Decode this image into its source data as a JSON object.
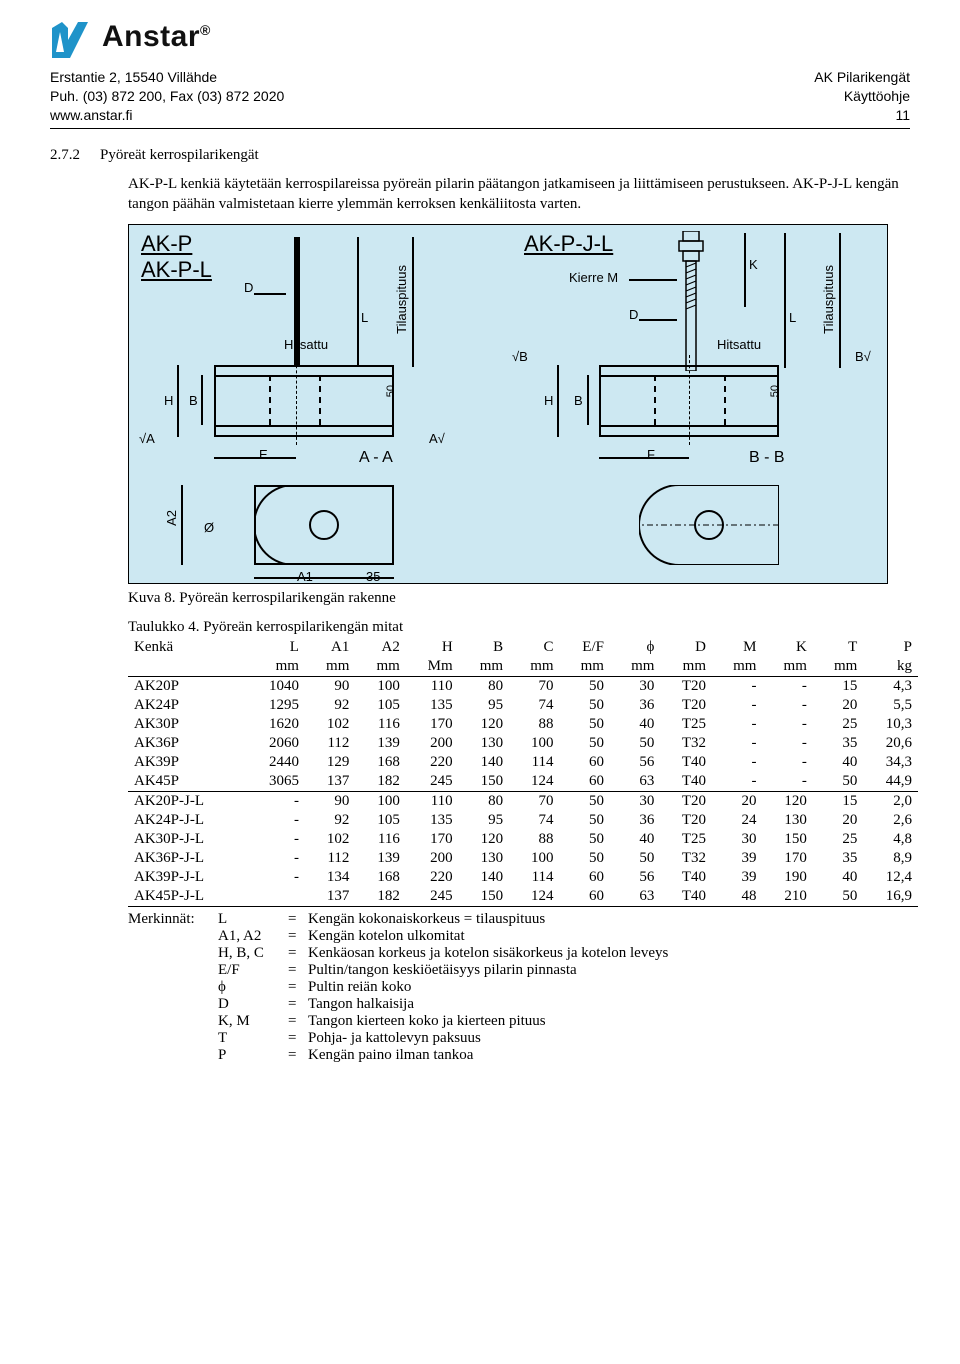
{
  "header": {
    "brand": "Anstar",
    "address_l1": "Erstantie 2, 15540 Villähde",
    "address_l2": "Puh. (03) 872 200, Fax (03) 872 2020",
    "address_l3": "www.anstar.fi",
    "right_l1": "AK Pilarikengät",
    "right_l2": "Käyttöohje",
    "right_l3": "11"
  },
  "section": {
    "num": "2.7.2",
    "title": "Pyöreät kerrospilarikengät",
    "para1": "AK-P-L kenkiä käytetään kerrospilareissa pyöreän pilarin päätangon jatkamiseen ja liittämiseen perustukseen. AK-P-J-L kengän tangon päähän valmistetaan kierre ylemmän kerroksen kenkäliitosta varten."
  },
  "diagram": {
    "left_title": "AK-P",
    "left_title2": "AK-P-L",
    "right_title": "AK-P-J-L",
    "lbl_D": "D",
    "lbl_L": "L",
    "lbl_K": "K",
    "lbl_H": "H",
    "lbl_B": "B",
    "lbl_E": "E",
    "lbl_F": "F",
    "lbl_A": "A",
    "lbl_A1": "A1",
    "lbl_A2": "A2",
    "lbl_35": "35",
    "lbl_50": "50",
    "lbl_phi": "Ø",
    "lbl_tilaus": "Tilauspituus",
    "lbl_hitsattu": "Hitsattu",
    "lbl_kierre": "Kierre M",
    "lbl_AA": "A - A",
    "lbl_BB": "B - B",
    "lbl_surfA": "A",
    "lbl_surfB": "B",
    "bg_color": "#cde8f2",
    "line_color": "#000000"
  },
  "caption": "Kuva 8. Pyöreän kerrospilarikengän rakenne",
  "table": {
    "title": "Taulukko 4. Pyöreän kerrospilarikengän mitat",
    "columns": [
      "Kenkä",
      "L",
      "A1",
      "A2",
      "H",
      "B",
      "C",
      "E/F",
      "ϕ",
      "D",
      "M",
      "K",
      "T",
      "P"
    ],
    "units": [
      "",
      "mm",
      "mm",
      "mm",
      "Mm",
      "mm",
      "mm",
      "mm",
      "mm",
      "mm",
      "mm",
      "mm",
      "mm",
      "kg"
    ],
    "rows": [
      [
        "AK20P",
        "1040",
        "90",
        "100",
        "110",
        "80",
        "70",
        "50",
        "30",
        "T20",
        "-",
        "-",
        "15",
        "4,3"
      ],
      [
        "AK24P",
        "1295",
        "92",
        "105",
        "135",
        "95",
        "74",
        "50",
        "36",
        "T20",
        "-",
        "-",
        "20",
        "5,5"
      ],
      [
        "AK30P",
        "1620",
        "102",
        "116",
        "170",
        "120",
        "88",
        "50",
        "40",
        "T25",
        "-",
        "-",
        "25",
        "10,3"
      ],
      [
        "AK36P",
        "2060",
        "112",
        "139",
        "200",
        "130",
        "100",
        "50",
        "50",
        "T32",
        "-",
        "-",
        "35",
        "20,6"
      ],
      [
        "AK39P",
        "2440",
        "129",
        "168",
        "220",
        "140",
        "114",
        "60",
        "56",
        "T40",
        "-",
        "-",
        "40",
        "34,3"
      ],
      [
        "AK45P",
        "3065",
        "137",
        "182",
        "245",
        "150",
        "124",
        "60",
        "63",
        "T40",
        "-",
        "-",
        "50",
        "44,9"
      ],
      [
        "AK20P-J-L",
        "-",
        "90",
        "100",
        "110",
        "80",
        "70",
        "50",
        "30",
        "T20",
        "20",
        "120",
        "15",
        "2,0"
      ],
      [
        "AK24P-J-L",
        "-",
        "92",
        "105",
        "135",
        "95",
        "74",
        "50",
        "36",
        "T20",
        "24",
        "130",
        "20",
        "2,6"
      ],
      [
        "AK30P-J-L",
        "-",
        "102",
        "116",
        "170",
        "120",
        "88",
        "50",
        "40",
        "T25",
        "30",
        "150",
        "25",
        "4,8"
      ],
      [
        "AK36P-J-L",
        "-",
        "112",
        "139",
        "200",
        "130",
        "100",
        "50",
        "50",
        "T32",
        "39",
        "170",
        "35",
        "8,9"
      ],
      [
        "AK39P-J-L",
        "-",
        "134",
        "168",
        "220",
        "140",
        "114",
        "60",
        "56",
        "T40",
        "39",
        "190",
        "40",
        "12,4"
      ],
      [
        "AK45P-J-L",
        "",
        "137",
        "182",
        "245",
        "150",
        "124",
        "60",
        "63",
        "T40",
        "48",
        "210",
        "50",
        "16,9"
      ]
    ],
    "sep_after_row": 5
  },
  "defs": {
    "label": "Merkinnät:",
    "items": [
      {
        "sym": "L",
        "text": "Kengän kokonaiskorkeus = tilauspituus"
      },
      {
        "sym": "A1, A2",
        "text": "Kengän kotelon ulkomitat"
      },
      {
        "sym": "H, B, C",
        "text": "Kenkäosan korkeus ja kotelon sisäkorkeus ja kotelon leveys"
      },
      {
        "sym": "E/F",
        "text": "Pultin/tangon keskiöetäisyys pilarin pinnasta"
      },
      {
        "sym": "ϕ",
        "text": "Pultin reiän koko"
      },
      {
        "sym": "D",
        "text": "Tangon halkaisija"
      },
      {
        "sym": "K, M",
        "text": "Tangon kierteen koko ja kierteen pituus"
      },
      {
        "sym": "T",
        "text": "Pohja- ja kattolevyn paksuus"
      },
      {
        "sym": "P",
        "text": "Kengän paino ilman tankoa"
      }
    ]
  }
}
